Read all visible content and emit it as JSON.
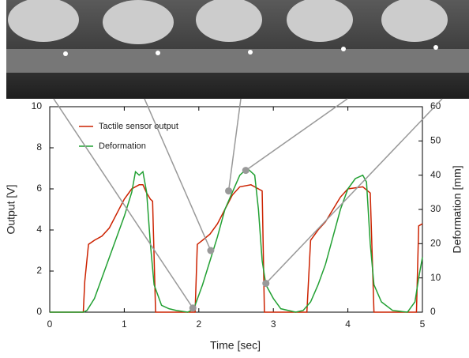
{
  "chart_data": {
    "type": "line",
    "xlabel": "Time [sec]",
    "ylabel": "Output [V]",
    "y2label": "Deformation [mm]",
    "xlim": [
      0,
      5
    ],
    "xticks": [
      0,
      1,
      2,
      3,
      4,
      5
    ],
    "ylim": [
      0,
      10
    ],
    "yticks": [
      0,
      2,
      4,
      6,
      8,
      10
    ],
    "y2lim": [
      0,
      60
    ],
    "y2ticks": [
      0,
      10,
      20,
      30,
      40,
      50,
      60
    ],
    "legend": "upper left",
    "series": [
      {
        "name": "Tactile sensor output",
        "color": "#cc2200",
        "x": [
          0,
          0.45,
          0.47,
          0.52,
          0.6,
          0.7,
          0.8,
          0.9,
          1.0,
          1.1,
          1.2,
          1.25,
          1.3,
          1.35,
          1.38,
          1.42,
          1.95,
          1.98,
          2.05,
          2.15,
          2.25,
          2.35,
          2.45,
          2.55,
          2.7,
          2.8,
          2.85,
          2.88,
          3.45,
          3.5,
          3.6,
          3.7,
          3.8,
          3.9,
          4.0,
          4.2,
          4.3,
          4.35,
          4.92,
          4.95,
          5.0
        ],
        "values": [
          0,
          0,
          1.5,
          3.3,
          3.5,
          3.7,
          4.1,
          4.8,
          5.5,
          6.0,
          6.2,
          6.2,
          5.8,
          5.5,
          5.4,
          0,
          0,
          3.3,
          3.5,
          3.8,
          4.3,
          5.0,
          5.7,
          6.1,
          6.2,
          6.0,
          5.9,
          0,
          0,
          3.5,
          4.0,
          4.4,
          5.0,
          5.6,
          6.0,
          6.1,
          5.8,
          0,
          0,
          4.2,
          4.3
        ]
      },
      {
        "name": "Deformation",
        "color": "#22a033",
        "axis": "y2",
        "x": [
          0,
          0.45,
          0.5,
          0.6,
          0.7,
          0.8,
          0.9,
          1.0,
          1.1,
          1.15,
          1.2,
          1.25,
          1.3,
          1.35,
          1.4,
          1.5,
          1.6,
          1.7,
          1.85,
          1.9,
          1.95,
          2.05,
          2.15,
          2.25,
          2.35,
          2.45,
          2.55,
          2.65,
          2.75,
          2.8,
          2.85,
          2.9,
          3.0,
          3.1,
          3.3,
          3.4,
          3.5,
          3.6,
          3.7,
          3.8,
          3.9,
          4.0,
          4.1,
          4.2,
          4.25,
          4.3,
          4.35,
          4.45,
          4.6,
          4.8,
          4.9,
          4.95,
          5.0
        ],
        "values": [
          0,
          0,
          0.5,
          4,
          10,
          16,
          22,
          28,
          35,
          41,
          40,
          41,
          35,
          20,
          8,
          2,
          1,
          0.5,
          0,
          0.5,
          2,
          8,
          15,
          22,
          30,
          35,
          40,
          42,
          40,
          30,
          15,
          8,
          4,
          1,
          0,
          0.5,
          3,
          8,
          14,
          22,
          30,
          36,
          39,
          40,
          38,
          20,
          8,
          3,
          0.5,
          0,
          3,
          10,
          16
        ]
      }
    ],
    "markers": {
      "color": "#999999",
      "x": [
        1.92,
        2.16,
        2.4,
        2.63,
        2.9
      ],
      "y": [
        0.2,
        3.0,
        5.9,
        6.9,
        1.4
      ]
    }
  }
}
